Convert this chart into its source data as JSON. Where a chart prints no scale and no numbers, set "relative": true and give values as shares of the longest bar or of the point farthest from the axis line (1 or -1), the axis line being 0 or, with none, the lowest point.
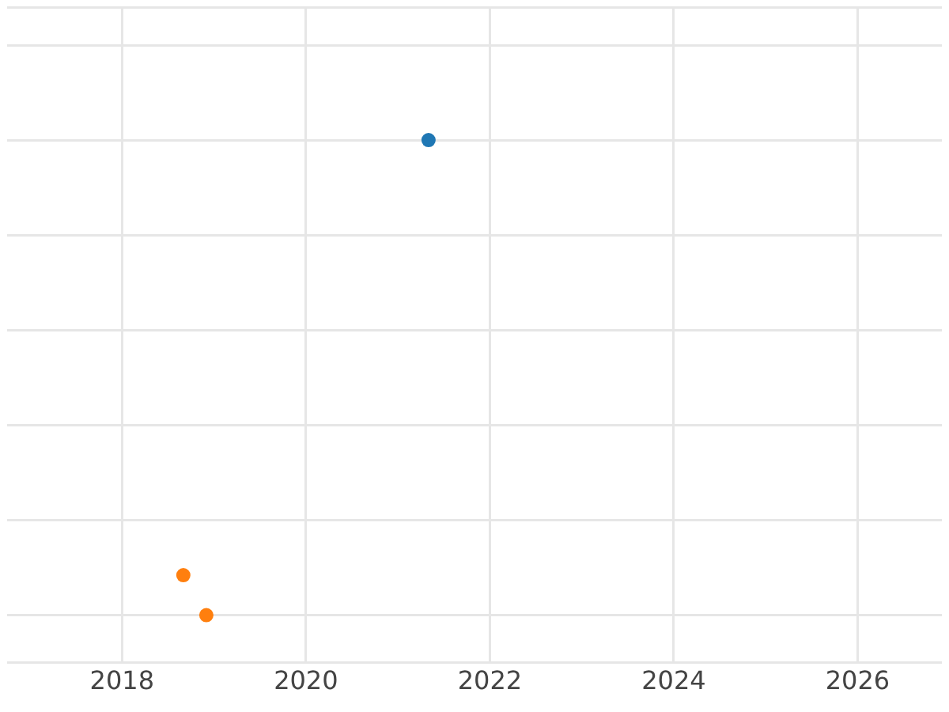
{
  "chart_data": {
    "type": "scatter",
    "relative": true,
    "grid": true,
    "legend": false,
    "marker": "circle",
    "xlim": [
      "2016-10",
      "2026-12"
    ],
    "xticks": [
      "2018",
      "2020",
      "2022",
      "2024",
      "2026"
    ],
    "series": [
      {
        "color": "#1f77b4",
        "x": [
          "2021-05"
        ],
        "values": [
          1
        ]
      },
      {
        "color": "#ff7f0e",
        "x": [
          "2018-09",
          "2018-12"
        ],
        "values": [
          0.084,
          0
        ]
      }
    ]
  }
}
